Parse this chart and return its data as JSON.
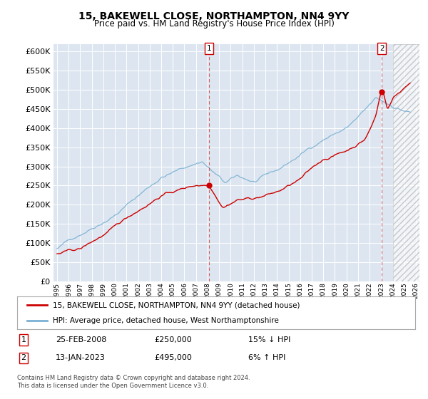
{
  "title": "15, BAKEWELL CLOSE, NORTHAMPTON, NN4 9YY",
  "subtitle": "Price paid vs. HM Land Registry's House Price Index (HPI)",
  "ylim": [
    0,
    620000
  ],
  "yticks": [
    0,
    50000,
    100000,
    150000,
    200000,
    250000,
    300000,
    350000,
    400000,
    450000,
    500000,
    550000,
    600000
  ],
  "hpi_color": "#7ab0d4",
  "price_color": "#cc0000",
  "bg_color": "#dde6f0",
  "legend_label_price": "15, BAKEWELL CLOSE, NORTHAMPTON, NN4 9YY (detached house)",
  "legend_label_hpi": "HPI: Average price, detached house, West Northamptonshire",
  "point1_date": "25-FEB-2008",
  "point1_price": "£250,000",
  "point1_hpi": "15% ↓ HPI",
  "point2_date": "13-JAN-2023",
  "point2_price": "£495,000",
  "point2_hpi": "6% ↑ HPI",
  "footer": "Contains HM Land Registry data © Crown copyright and database right 2024.\nThis data is licensed under the Open Government Licence v3.0.",
  "point1_x": 2008.12,
  "point2_x": 2023.04,
  "point1_y": 250000,
  "point2_y": 495000,
  "hatch_start": 2024.0,
  "xlim_left": 1994.7,
  "xlim_right": 2026.3
}
